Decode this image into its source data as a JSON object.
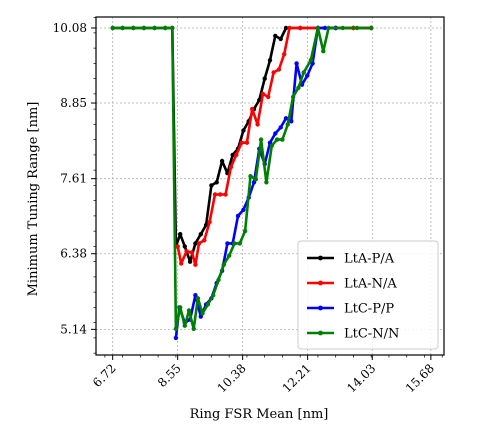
{
  "chart_data": {
    "type": "line",
    "xlabel": "Ring FSR Mean [nm]",
    "ylabel": "Minimum Tuning Range [nm]",
    "x_ticks": [
      6.72,
      8.55,
      10.38,
      12.21,
      14.03,
      15.68
    ],
    "x_tick_labels": [
      "6.72",
      "8.55",
      "10.38",
      "12.21",
      "14.03",
      "15.68"
    ],
    "y_ticks": [
      5.14,
      6.38,
      7.61,
      8.85,
      10.08
    ],
    "y_tick_labels": [
      "5.14",
      "6.38",
      "7.61",
      "8.85",
      "10.08"
    ],
    "xlim": [
      6.25,
      16.05
    ],
    "ylim": [
      4.72,
      10.26
    ],
    "grid": true,
    "legend_position": "lower-right",
    "series": [
      {
        "name": "LtA-P/A",
        "color": "#000000",
        "points": [
          [
            6.72,
            10.08
          ],
          [
            7.0,
            10.08
          ],
          [
            7.3,
            10.08
          ],
          [
            7.6,
            10.08
          ],
          [
            7.9,
            10.08
          ],
          [
            8.2,
            10.08
          ],
          [
            8.4,
            10.08
          ],
          [
            8.5,
            6.5
          ],
          [
            8.62,
            6.7
          ],
          [
            8.75,
            6.5
          ],
          [
            8.9,
            6.25
          ],
          [
            9.05,
            6.55
          ],
          [
            9.2,
            6.7
          ],
          [
            9.35,
            6.85
          ],
          [
            9.5,
            7.5
          ],
          [
            9.65,
            7.55
          ],
          [
            9.8,
            7.9
          ],
          [
            9.95,
            7.7
          ],
          [
            10.1,
            8.0
          ],
          [
            10.25,
            8.1
          ],
          [
            10.4,
            8.4
          ],
          [
            10.55,
            8.55
          ],
          [
            10.7,
            8.75
          ],
          [
            10.85,
            8.9
          ],
          [
            11.0,
            9.25
          ],
          [
            11.15,
            9.55
          ],
          [
            11.3,
            9.95
          ],
          [
            11.45,
            9.9
          ],
          [
            11.6,
            10.08
          ],
          [
            12.0,
            10.08
          ],
          [
            12.5,
            10.08
          ],
          [
            13.0,
            10.08
          ],
          [
            13.5,
            10.08
          ],
          [
            14.0,
            10.08
          ]
        ]
      },
      {
        "name": "LtA-N/A",
        "color": "#ff0000",
        "points": [
          [
            8.55,
            6.5
          ],
          [
            8.65,
            6.22
          ],
          [
            8.8,
            6.42
          ],
          [
            8.95,
            6.4
          ],
          [
            9.05,
            6.2
          ],
          [
            9.15,
            6.55
          ],
          [
            9.3,
            6.6
          ],
          [
            9.45,
            6.9
          ],
          [
            9.6,
            7.35
          ],
          [
            9.75,
            7.35
          ],
          [
            9.9,
            7.35
          ],
          [
            10.05,
            7.8
          ],
          [
            10.2,
            8.0
          ],
          [
            10.35,
            8.2
          ],
          [
            10.5,
            8.2
          ],
          [
            10.65,
            8.75
          ],
          [
            10.8,
            8.5
          ],
          [
            10.95,
            9.0
          ],
          [
            11.1,
            8.95
          ],
          [
            11.25,
            9.35
          ],
          [
            11.4,
            9.4
          ],
          [
            11.55,
            9.65
          ],
          [
            11.7,
            10.08
          ],
          [
            12.0,
            10.08
          ],
          [
            12.5,
            10.08
          ],
          [
            13.0,
            10.08
          ],
          [
            13.5,
            10.08
          ],
          [
            14.0,
            10.08
          ]
        ]
      },
      {
        "name": "LtC-P/P",
        "color": "#0000ff",
        "points": [
          [
            8.5,
            5.0
          ],
          [
            8.6,
            5.5
          ],
          [
            8.75,
            5.25
          ],
          [
            8.9,
            5.3
          ],
          [
            9.05,
            5.7
          ],
          [
            9.2,
            5.35
          ],
          [
            9.35,
            5.55
          ],
          [
            9.5,
            5.65
          ],
          [
            9.65,
            5.9
          ],
          [
            9.8,
            6.1
          ],
          [
            9.95,
            6.55
          ],
          [
            10.1,
            6.55
          ],
          [
            10.25,
            7.0
          ],
          [
            10.4,
            7.1
          ],
          [
            10.55,
            7.3
          ],
          [
            10.7,
            7.55
          ],
          [
            10.85,
            8.1
          ],
          [
            11.0,
            7.85
          ],
          [
            11.15,
            8.2
          ],
          [
            11.3,
            8.35
          ],
          [
            11.45,
            8.45
          ],
          [
            11.6,
            8.6
          ],
          [
            11.75,
            8.55
          ],
          [
            11.9,
            9.5
          ],
          [
            12.05,
            9.15
          ],
          [
            12.2,
            9.3
          ],
          [
            12.35,
            9.5
          ],
          [
            12.5,
            10.08
          ],
          [
            12.7,
            10.08
          ],
          [
            13.0,
            10.08
          ]
        ]
      },
      {
        "name": "LtC-N/N",
        "color": "#008000",
        "points": [
          [
            6.72,
            10.08
          ],
          [
            7.0,
            10.08
          ],
          [
            7.3,
            10.08
          ],
          [
            7.6,
            10.08
          ],
          [
            7.9,
            10.08
          ],
          [
            8.2,
            10.08
          ],
          [
            8.4,
            10.08
          ],
          [
            8.5,
            5.15
          ],
          [
            8.62,
            5.5
          ],
          [
            8.75,
            5.2
          ],
          [
            8.87,
            5.45
          ],
          [
            9.0,
            5.15
          ],
          [
            9.12,
            5.65
          ],
          [
            9.25,
            5.4
          ],
          [
            9.4,
            5.55
          ],
          [
            9.55,
            5.7
          ],
          [
            9.7,
            5.95
          ],
          [
            9.85,
            6.2
          ],
          [
            10.0,
            6.35
          ],
          [
            10.15,
            6.55
          ],
          [
            10.3,
            6.55
          ],
          [
            10.45,
            6.75
          ],
          [
            10.6,
            7.65
          ],
          [
            10.75,
            7.6
          ],
          [
            10.9,
            8.25
          ],
          [
            11.05,
            7.55
          ],
          [
            11.2,
            8.15
          ],
          [
            11.35,
            8.25
          ],
          [
            11.5,
            8.25
          ],
          [
            11.65,
            8.5
          ],
          [
            11.8,
            8.95
          ],
          [
            11.95,
            9.1
          ],
          [
            12.1,
            9.35
          ],
          [
            12.3,
            9.55
          ],
          [
            12.5,
            10.08
          ],
          [
            12.65,
            9.7
          ],
          [
            12.8,
            10.08
          ],
          [
            13.2,
            10.08
          ],
          [
            13.6,
            10.08
          ],
          [
            14.0,
            10.08
          ]
        ]
      }
    ]
  }
}
